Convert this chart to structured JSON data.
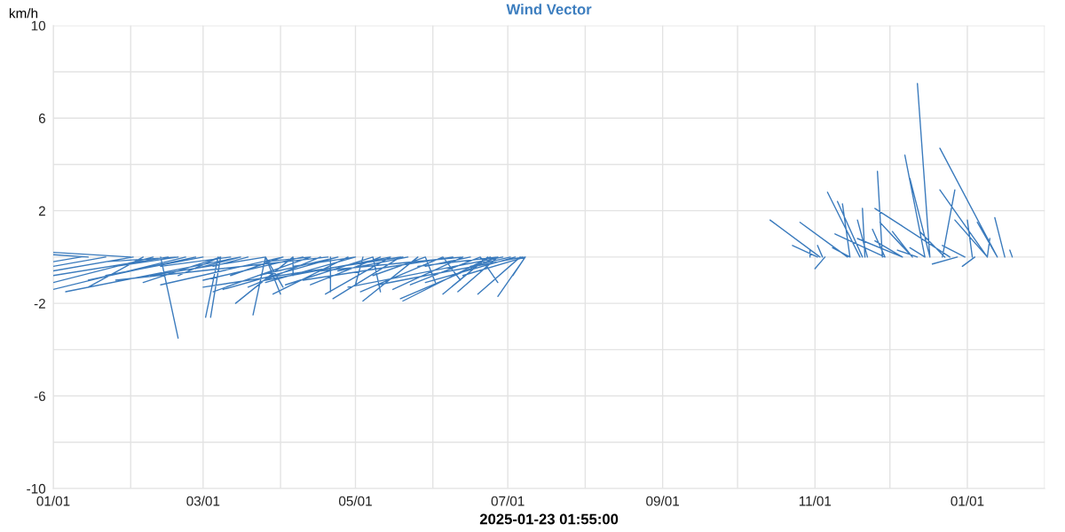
{
  "chart_data": {
    "type": "line",
    "title": "Wind Vector",
    "xlabel": "2025-01-23 01:55:00",
    "ylabel": "km/h",
    "xlim": [
      "2024-01-01",
      "2025-02-01"
    ],
    "xticks": [
      {
        "value": "2024-01-01",
        "label": "01/01"
      },
      {
        "value": "2024-02-01",
        "label": null
      },
      {
        "value": "2024-03-01",
        "label": "03/01"
      },
      {
        "value": "2024-04-01",
        "label": null
      },
      {
        "value": "2024-05-01",
        "label": "05/01"
      },
      {
        "value": "2024-06-01",
        "label": null
      },
      {
        "value": "2024-07-01",
        "label": "07/01"
      },
      {
        "value": "2024-08-01",
        "label": null
      },
      {
        "value": "2024-09-01",
        "label": "09/01"
      },
      {
        "value": "2024-10-01",
        "label": null
      },
      {
        "value": "2024-11-01",
        "label": "11/01"
      },
      {
        "value": "2024-12-01",
        "label": null
      },
      {
        "value": "2025-01-01",
        "label": "01/01"
      },
      {
        "value": "2025-02-01",
        "label": null
      }
    ],
    "ylim": [
      -10,
      10
    ],
    "yticks": [
      -10,
      {
        "value": -8,
        "label": null
      },
      -6,
      {
        "value": -4,
        "label": null
      },
      -2,
      {
        "value": 0,
        "label": null
      },
      2,
      {
        "value": 4,
        "label": null
      },
      6,
      {
        "value": 8,
        "label": null
      },
      10
    ],
    "grid": true,
    "series": [
      {
        "color": "#3b7bbd",
        "x": [
          "2024-02-01",
          "2024-01-01",
          null,
          "2024-01-15",
          "2024-01-01",
          null,
          "2024-02-02",
          "2024-01-01",
          null,
          "2024-02-16",
          "2024-01-01",
          null,
          "2024-02-06",
          "2024-01-15",
          null,
          "2024-02-23",
          "2024-01-01",
          null,
          "2024-03-16",
          "2024-01-06",
          null,
          "2024-03-01",
          "2024-01-22",
          null,
          "2024-02-20",
          "2024-01-26",
          null,
          "2024-02-13",
          "2024-02-20",
          null,
          "2024-03-07",
          "2024-03-02",
          null,
          "2024-03-08",
          "2024-03-04",
          null,
          "2024-03-26",
          "2024-03-21",
          null,
          "2024-03-26",
          "2024-04-01",
          null,
          "2024-04-06",
          "2024-03-14",
          null,
          "2024-04-10",
          "2024-03-01",
          null,
          "2024-04-02",
          "2024-02-13",
          null,
          "2024-03-26",
          "2024-02-09",
          null,
          "2024-03-19",
          "2024-03-05",
          null,
          "2024-03-12",
          "2024-02-13",
          null,
          "2024-04-13",
          "2024-03-05",
          null,
          "2024-04-24",
          "2024-03-09",
          null,
          "2024-05-01",
          "2024-03-26",
          null,
          "2024-05-08",
          "2024-04-03",
          null,
          "2024-05-11",
          "2024-04-13",
          null,
          "2024-04-21",
          "2024-04-21",
          null,
          "2024-05-15",
          "2024-04-19",
          null,
          "2024-05-19",
          "2024-04-22",
          null,
          "2024-05-26",
          "2024-05-04",
          null,
          "2024-06-27",
          "2024-05-19",
          null,
          "2024-06-23",
          "2024-06-05",
          null,
          "2024-06-27",
          "2024-06-11",
          null,
          "2024-07-06",
          "2024-06-19",
          null,
          "2024-07-08",
          "2024-06-27",
          null,
          "2024-07-08",
          "2024-07-03",
          null,
          "2024-07-08",
          "2024-06-13",
          null,
          "2024-07-04",
          "2024-05-29",
          null,
          "2024-06-20",
          "2024-05-23",
          null,
          "2024-06-13",
          "2024-05-16",
          null,
          "2024-06-05",
          "2024-05-03",
          null,
          "2024-05-29",
          "2024-05-08",
          null,
          "2024-05-22",
          "2024-04-24",
          null,
          "2024-05-15",
          "2024-03-26",
          null,
          "2024-05-01",
          "2024-04-06",
          null,
          "2024-04-24",
          "2024-03-23",
          null,
          "2024-04-17",
          "2024-03-19",
          null,
          "2024-03-08",
          "2024-02-06",
          null,
          "2024-02-27",
          "2024-01-15",
          null,
          "2024-01-22",
          "2024-01-01",
          null,
          "2024-01-12",
          "2024-01-01",
          null,
          "2024-04-02",
          "2024-03-12",
          null,
          "2024-05-29",
          "2024-06-02",
          null,
          "2024-05-08",
          "2024-05-11",
          null,
          "2024-03-26",
          "2024-04-02",
          null,
          "2024-06-20",
          "2024-06-27",
          null,
          "2024-06-05",
          "2024-06-12",
          null,
          "2024-06-27",
          "2024-05-26",
          null,
          "2024-06-13",
          "2024-04-17",
          null,
          "2024-03-16",
          "2024-02-27",
          null,
          "2024-02-20",
          "2024-01-22",
          null,
          "2024-04-13",
          "2024-03-26",
          null,
          "2024-05-19",
          "2024-05-01",
          null,
          "2024-06-16",
          "2024-05-29",
          null,
          "2024-07-02",
          "2024-06-16",
          null,
          "2024-05-04",
          "2024-05-01",
          null,
          "2024-03-08",
          "2024-02-20",
          null,
          "2024-04-06",
          "2024-04-06",
          null,
          "2024-04-20",
          "2024-01-26",
          null,
          "2024-05-20",
          "2024-03-01",
          null,
          "2024-06-09",
          "2024-04-10",
          null,
          "2024-06-29",
          "2024-04-28",
          null,
          "2024-07-07",
          "2024-05-10",
          null,
          "2024-06-24",
          "2024-05-20",
          null,
          "2024-04-28",
          "2024-03-29",
          null,
          "2024-02-10",
          "2024-01-01",
          null,
          "2024-11-03",
          "2024-10-14",
          null,
          "2024-11-02",
          "2024-10-23",
          null,
          "2024-11-14",
          "2024-10-26",
          null,
          "2024-10-30",
          "2024-10-30",
          null,
          "2024-11-04",
          "2024-11-02",
          null,
          "2024-11-05",
          "2024-11-01",
          null,
          "2024-11-19",
          "2024-11-06",
          null,
          "2024-11-20",
          "2024-11-10",
          null,
          "2024-11-15",
          "2024-11-12",
          null,
          "2024-11-15",
          "2024-11-08",
          null,
          "2024-11-21",
          "2024-11-20",
          null,
          "2024-11-22",
          "2024-11-18",
          null,
          "2024-11-28",
          "2024-11-26",
          null,
          "2024-12-25",
          "2024-11-25",
          null,
          "2024-11-29",
          "2024-11-24",
          null,
          "2024-12-10",
          "2024-11-27",
          null,
          "2024-12-10",
          "2024-12-02",
          null,
          "2024-12-15",
          "2024-12-07",
          null,
          "2024-12-17",
          "2024-12-12",
          null,
          "2024-12-17",
          "2024-12-09",
          null,
          "2024-12-23",
          "2024-12-13",
          null,
          "2025-01-13",
          "2024-12-21",
          null,
          "2024-12-22",
          "2024-12-27",
          null,
          "2025-01-09",
          "2024-12-21",
          null,
          "2025-01-09",
          "2024-12-27",
          null,
          "2025-01-03",
          "2025-01-01",
          null,
          "2025-01-13",
          "2025-01-05",
          null,
          "2025-01-16",
          "2025-01-12",
          null,
          "2025-01-09",
          "2025-01-10",
          null,
          "2025-01-04",
          "2024-12-30",
          null,
          "2024-12-28",
          "2024-12-18",
          null,
          "2024-12-15",
          "2024-12-09",
          null,
          "2024-12-06",
          "2024-11-18",
          null,
          "2025-01-19",
          "2025-01-18",
          null,
          "2024-11-29",
          "2024-11-09",
          null,
          "2024-12-06",
          "2024-11-25",
          null,
          "2024-12-31",
          "2024-12-22",
          null,
          "2024-12-12",
          "2024-12-04"
        ],
        "values": [
          0,
          0.2,
          null,
          0,
          0.1,
          null,
          0,
          -0.6,
          null,
          0,
          -0.8,
          null,
          0,
          -1.3,
          null,
          0,
          -1.4,
          null,
          0,
          -1.5,
          null,
          0,
          -0.8,
          null,
          0,
          -0.4,
          null,
          0,
          -3.5,
          null,
          0,
          -2.6,
          null,
          0,
          -2.6,
          null,
          0,
          -2.5,
          null,
          0,
          -1.6,
          null,
          0,
          -2.0,
          null,
          0,
          -1.0,
          null,
          0,
          -1.2,
          null,
          0,
          -0.8,
          null,
          0,
          -0.4,
          null,
          0,
          -0.4,
          null,
          0,
          -1.5,
          null,
          0,
          -1.4,
          null,
          0,
          -1.1,
          null,
          0,
          -1.2,
          null,
          0,
          -1.2,
          null,
          0,
          -1.5,
          null,
          0,
          -1.6,
          null,
          0,
          -1.8,
          null,
          0,
          -1.9,
          null,
          0,
          -1.8,
          null,
          0,
          -1.6,
          null,
          0,
          -1.5,
          null,
          0,
          -1.6,
          null,
          0,
          -1.7,
          null,
          0,
          -0.8,
          null,
          0,
          -0.8,
          null,
          0,
          -1.1,
          null,
          0,
          -1.2,
          null,
          0,
          -1.4,
          null,
          0,
          -1.5,
          null,
          0,
          -0.8,
          null,
          0,
          -0.6,
          null,
          0,
          -1.0,
          null,
          0,
          -0.4,
          null,
          0,
          -0.8,
          null,
          0,
          -1.3,
          null,
          0,
          -1.1,
          null,
          0,
          -1.0,
          null,
          0,
          -0.4,
          null,
          0,
          -0.2,
          null,
          0,
          -0.8,
          null,
          0,
          -1.1,
          null,
          0,
          -1.5,
          null,
          0,
          -1.3,
          null,
          0,
          -1.1,
          null,
          0,
          -1.0,
          null,
          0,
          -0.4,
          null,
          0,
          -0.6,
          null,
          0,
          -0.5,
          null,
          0,
          -0.2,
          null,
          0,
          -0.2,
          null,
          0,
          -0.3,
          null,
          0,
          -0.4,
          null,
          0,
          -0.4,
          null,
          0,
          -1.2,
          null,
          0,
          -0.8,
          null,
          0,
          -0.8,
          null,
          0,
          -1.0,
          null,
          0,
          -1.3,
          null,
          0,
          -1.0,
          null,
          0,
          -1.3,
          null,
          0,
          -1.2,
          null,
          0,
          -1.9,
          null,
          0,
          -1.6,
          null,
          0,
          -1.1,
          null,
          0,
          1.6,
          null,
          0,
          0.5,
          null,
          0,
          1.5,
          null,
          0,
          0.3,
          null,
          0,
          0.5,
          null,
          0,
          -0.5,
          null,
          0,
          2.8,
          null,
          0,
          2.4,
          null,
          0,
          2.3,
          null,
          0,
          0.4,
          null,
          0,
          2.1,
          null,
          0,
          1.6,
          null,
          0,
          3.7,
          null,
          0,
          2.1,
          null,
          0,
          1.2,
          null,
          0,
          1.5,
          null,
          0,
          1.1,
          null,
          0,
          4.4,
          null,
          0,
          7.5,
          null,
          0,
          3.4,
          null,
          0,
          1.1,
          null,
          0,
          4.7,
          null,
          0,
          2.9,
          null,
          0,
          2.9,
          null,
          0,
          1.6,
          null,
          0,
          1.6,
          null,
          0,
          1.5,
          null,
          0,
          1.7,
          null,
          0,
          0.8,
          null,
          0,
          -0.4,
          null,
          0,
          -0.3,
          null,
          0,
          0.4,
          null,
          0,
          0.8,
          null,
          0,
          0.3,
          null,
          0,
          1.0,
          null,
          0,
          0.7,
          null,
          0,
          0.5,
          null,
          0,
          0.3
        ]
      }
    ]
  }
}
